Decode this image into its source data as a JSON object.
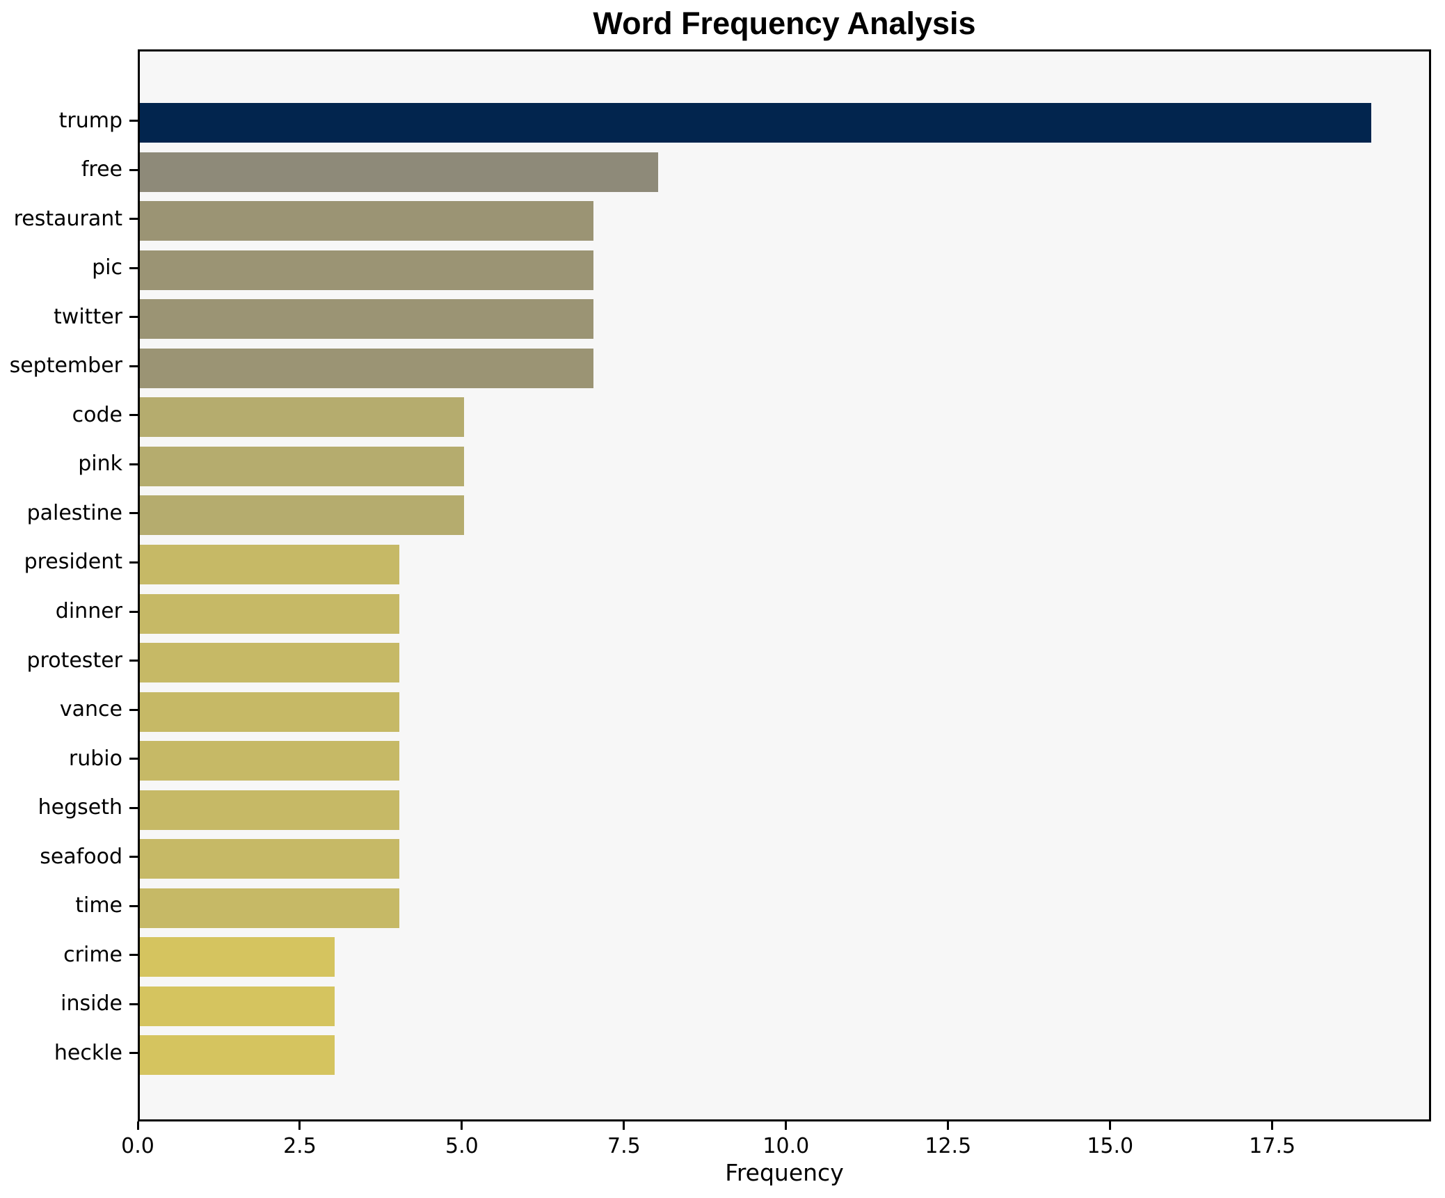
{
  "chart_data": {
    "type": "bar",
    "orientation": "horizontal",
    "title": "Word Frequency Analysis",
    "xlabel": "Frequency",
    "ylabel": "",
    "categories": [
      "trump",
      "free",
      "restaurant",
      "pic",
      "twitter",
      "september",
      "code",
      "pink",
      "palestine",
      "president",
      "dinner",
      "protester",
      "vance",
      "rubio",
      "hegseth",
      "seafood",
      "time",
      "crime",
      "inside",
      "heckle"
    ],
    "values": [
      19,
      8,
      7,
      7,
      7,
      7,
      5,
      5,
      5,
      4,
      4,
      4,
      4,
      4,
      4,
      4,
      4,
      3,
      3,
      3
    ],
    "bar_colors": [
      "#02254e",
      "#8e8a79",
      "#9b9474",
      "#9b9474",
      "#9b9474",
      "#9b9474",
      "#b5ac6e",
      "#b5ac6e",
      "#b5ac6e",
      "#c6b966",
      "#c6b966",
      "#c6b966",
      "#c6b966",
      "#c6b966",
      "#c6b966",
      "#c6b966",
      "#c6b966",
      "#d5c45f",
      "#d5c45f",
      "#d5c45f"
    ],
    "xlim": [
      0,
      19.95
    ],
    "xticks": [
      0.0,
      2.5,
      5.0,
      7.5,
      10.0,
      12.5,
      15.0,
      17.5
    ],
    "grid": false,
    "legend": null,
    "plot_bg": "#f7f7f7",
    "figure_bg": "#ffffff",
    "spine_color": "#000000"
  }
}
